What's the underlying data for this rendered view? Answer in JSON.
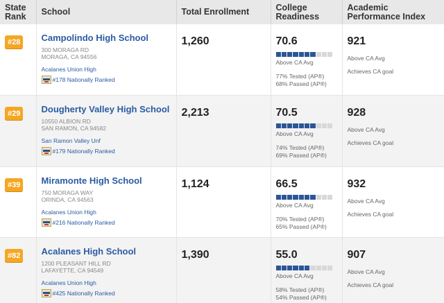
{
  "headers": {
    "rank": "State Rank",
    "school": "School",
    "enrollment": "Total Enrollment",
    "college": "College Readiness",
    "api": "Academic Performance Index"
  },
  "colors": {
    "rank_badge": "#f5a623",
    "link": "#2a5ba3",
    "bar_fill": "#2a5699",
    "bar_empty": "#d8d8d8"
  },
  "rows": [
    {
      "rank": "#28",
      "name": "Campolindo High School",
      "address1": "300 MORAGA RD",
      "address2": "MORAGA, CA 94556",
      "district": "Acalanes Union High",
      "national": "#178 Nationally Ranked",
      "enrollment": "1,260",
      "college_value": "70.6",
      "college_level": 0.71,
      "college_avg": "Above CA Avg",
      "tested": "77% Tested (AP®)",
      "passed": "68% Passed (AP®)",
      "api_value": "921",
      "api_avg": "Above CA Avg",
      "api_goal": "Achieves CA goal"
    },
    {
      "rank": "#29",
      "name": "Dougherty Valley High School",
      "address1": "10550 ALBION RD",
      "address2": "SAN RAMON, CA 94582",
      "district": "San Ramon Valley Unf",
      "national": "#179 Nationally Ranked",
      "enrollment": "2,213",
      "college_value": "70.5",
      "college_level": 0.71,
      "college_avg": "Above CA Avg",
      "tested": "74% Tested (AP®)",
      "passed": "69% Passed (AP®)",
      "api_value": "928",
      "api_avg": "Above CA Avg",
      "api_goal": "Achieves CA goal"
    },
    {
      "rank": "#39",
      "name": "Miramonte High School",
      "address1": "750 MORAGA WAY",
      "address2": "ORINDA, CA 94563",
      "district": "Acalanes Union High",
      "national": "#216 Nationally Ranked",
      "enrollment": "1,124",
      "college_value": "66.5",
      "college_level": 0.67,
      "college_avg": "Above CA Avg",
      "tested": "70% Tested (AP®)",
      "passed": "65% Passed (AP®)",
      "api_value": "932",
      "api_avg": "Above CA Avg",
      "api_goal": "Achieves CA goal"
    },
    {
      "rank": "#82",
      "name": "Acalanes High School",
      "address1": "1200 PLEASANT HILL RD",
      "address2": "LAFAYETTE, CA 94549",
      "district": "Acalanes Union High",
      "national": "#425 Nationally Ranked",
      "enrollment": "1,390",
      "college_value": "55.0",
      "college_level": 0.55,
      "college_avg": "Above CA Avg",
      "tested": "58% Tested (AP®)",
      "passed": "54% Passed (AP®)",
      "api_value": "907",
      "api_avg": "Above CA Avg",
      "api_goal": "Achieves CA goal"
    }
  ]
}
